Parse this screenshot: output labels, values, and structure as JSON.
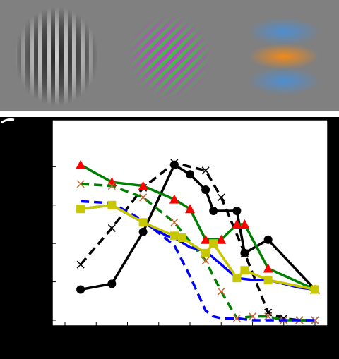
{
  "stimuli": [
    {
      "name": "vertical-grating",
      "colors": [
        "#2a2a2a",
        "#cfcfcf"
      ]
    },
    {
      "name": "oblique-color-grating",
      "colors": [
        "#c040d0",
        "#40c040"
      ]
    },
    {
      "name": "horizontal-color-blob",
      "colors": [
        "#f08a1a",
        "#4a8fd8"
      ]
    }
  ],
  "chart_data": {
    "type": "line",
    "title": "",
    "xlabel": "",
    "ylabel": "",
    "xlim": [
      0,
      16
    ],
    "ylim": [
      0,
      1
    ],
    "grid": false,
    "series": [
      {
        "color": "#000000",
        "dash": false,
        "marker": "circle",
        "x": [
          1,
          3,
          5,
          7,
          8,
          9,
          9.5,
          11,
          11.5,
          13,
          16
        ],
        "y": [
          0.16,
          0.19,
          0.46,
          0.81,
          0.76,
          0.68,
          0.57,
          0.57,
          0.35,
          0.42,
          0.16
        ]
      },
      {
        "color": "#000000",
        "dash": true,
        "marker": "x",
        "x": [
          1,
          3,
          5,
          7,
          9,
          10,
          11.5,
          13,
          14,
          15,
          16
        ],
        "y": [
          0.29,
          0.48,
          0.69,
          0.82,
          0.78,
          0.64,
          0.35,
          0.04,
          0.01,
          0.0,
          0.0
        ]
      },
      {
        "color": "#008000",
        "dash": false,
        "marker": "triangle",
        "x": [
          1,
          3,
          5,
          7,
          8,
          9,
          10,
          11,
          11.5,
          13,
          16
        ],
        "y": [
          0.81,
          0.72,
          0.7,
          0.63,
          0.58,
          0.42,
          0.42,
          0.5,
          0.5,
          0.27,
          0.16
        ]
      },
      {
        "color": "#008000",
        "dash": true,
        "marker": "x",
        "x": [
          1,
          3,
          5,
          7,
          9,
          10,
          11,
          12,
          13,
          14,
          15,
          16
        ],
        "y": [
          0.71,
          0.7,
          0.64,
          0.51,
          0.31,
          0.15,
          0.01,
          0.02,
          0.02,
          0.0,
          0.0,
          0.0
        ]
      },
      {
        "color": "#0000ff",
        "dash": false,
        "marker": "square",
        "x": [
          1,
          3,
          5,
          6.5,
          7,
          8,
          9,
          10,
          11,
          12,
          13,
          14,
          15,
          16
        ],
        "y": [
          0.58,
          0.6,
          0.51,
          0.44,
          0.43,
          0.38,
          0.36,
          0.29,
          0.22,
          0.21,
          0.21,
          0.19,
          0.17,
          0.16
        ]
      },
      {
        "color": "#0000ff",
        "dash": true,
        "marker": "none",
        "x": [
          1,
          3,
          5,
          7,
          8,
          9,
          9.5,
          10,
          11,
          12,
          13,
          14,
          15,
          16
        ],
        "y": [
          0.62,
          0.61,
          0.52,
          0.39,
          0.23,
          0.05,
          0.02,
          0.01,
          0.01,
          0.0,
          0.0,
          0.0,
          0.0,
          0.0
        ]
      },
      {
        "color": "#c8c800",
        "dash": false,
        "marker": "square-yellow",
        "x": [
          1,
          3,
          5,
          7,
          7.5,
          9,
          9.5,
          11,
          11.5,
          13,
          16
        ],
        "y": [
          0.58,
          0.6,
          0.51,
          0.44,
          0.43,
          0.35,
          0.4,
          0.22,
          0.26,
          0.21,
          0.16
        ]
      }
    ]
  }
}
